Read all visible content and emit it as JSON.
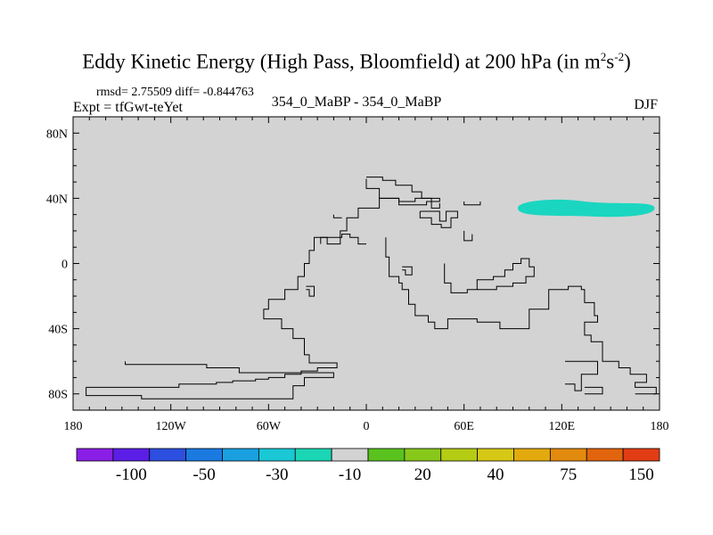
{
  "header": {
    "title_main": "Eddy Kinetic Energy (High Pass, Bloomfield) at 200 hPa (in m",
    "title_sup1": "2",
    "title_mid": "s",
    "title_sup2": "-2",
    "title_end": ")",
    "stats": "rmsd= 2.75509 diff= -0.844763",
    "expt": "Expt = tfGwt-teYet",
    "case": "354_0_MaBP - 354_0_MaBP",
    "season": "DJF"
  },
  "chart_data": {
    "type": "heatmap",
    "title": "Eddy Kinetic Energy (High Pass, Bloomfield) at 200 hPa (in m2s-2)",
    "x_range": [
      -180,
      180
    ],
    "y_range": [
      -90,
      90
    ],
    "x_ticks": [
      {
        "value": -180,
        "label": "180"
      },
      {
        "value": -120,
        "label": "120W"
      },
      {
        "value": -60,
        "label": "60W"
      },
      {
        "value": 0,
        "label": "0"
      },
      {
        "value": 60,
        "label": "60E"
      },
      {
        "value": 120,
        "label": "120E"
      },
      {
        "value": 180,
        "label": "180"
      }
    ],
    "y_ticks": [
      {
        "value": 80,
        "label": "80N"
      },
      {
        "value": 40,
        "label": "40N"
      },
      {
        "value": 0,
        "label": "0"
      },
      {
        "value": -40,
        "label": "40S"
      },
      {
        "value": -80,
        "label": "80S"
      }
    ],
    "background_value_color": "#d3d3d3",
    "anomaly_regions": [
      {
        "description": "-10 to -30 band",
        "color": "#1ad6c0",
        "lon_range": [
          93,
          177
        ],
        "lat_range": [
          29,
          39
        ]
      }
    ],
    "colorbar": {
      "colors": [
        "#8a1ee6",
        "#5b1ee6",
        "#2c4fe0",
        "#1a7ae0",
        "#1aa0e0",
        "#1ac8d6",
        "#1ad6b4",
        "#d3d3d3",
        "#5ac21e",
        "#88c81a",
        "#b4cc14",
        "#d6c814",
        "#e2aa0e",
        "#e28a0e",
        "#e2640e",
        "#e23c14"
      ],
      "labels": [
        {
          "boundary": 2,
          "label": "-100"
        },
        {
          "boundary": 4,
          "label": "-50"
        },
        {
          "boundary": 6,
          "label": "-30"
        },
        {
          "boundary": 8,
          "label": "-10"
        },
        {
          "boundary": 10,
          "label": "20"
        },
        {
          "boundary": 12,
          "label": "40"
        },
        {
          "boundary": 14,
          "label": "75"
        },
        {
          "boundary": 16,
          "label": "150"
        }
      ]
    },
    "coastline_lon_lat": [
      [
        [
          -172,
          -76
        ],
        [
          -115,
          -76
        ],
        [
          -115,
          -74
        ],
        [
          -92,
          -74
        ],
        [
          -92,
          -73
        ],
        [
          -82,
          -73
        ],
        [
          -82,
          -72
        ],
        [
          -68,
          -72
        ],
        [
          -68,
          -71
        ],
        [
          -60,
          -71
        ],
        [
          -60,
          -70
        ],
        [
          -50,
          -70
        ],
        [
          -50,
          -68
        ],
        [
          -40,
          -68
        ],
        [
          -40,
          -66
        ],
        [
          -30,
          -66
        ],
        [
          -30,
          -64
        ],
        [
          -18,
          -64
        ],
        [
          -18,
          -61
        ],
        [
          -35,
          -61
        ],
        [
          -35,
          -56
        ],
        [
          -38,
          -56
        ],
        [
          -38,
          -46
        ],
        [
          -45,
          -46
        ],
        [
          -45,
          -40
        ],
        [
          -52,
          -40
        ],
        [
          -52,
          -34
        ],
        [
          -63,
          -34
        ],
        [
          -63,
          -28
        ],
        [
          -60,
          -28
        ],
        [
          -60,
          -22
        ],
        [
          -50,
          -22
        ],
        [
          -50,
          -16
        ],
        [
          -42,
          -16
        ],
        [
          -42,
          -8
        ],
        [
          -38,
          -8
        ],
        [
          -38,
          0
        ],
        [
          -35,
          0
        ],
        [
          -35,
          8
        ],
        [
          -32,
          8
        ],
        [
          -32,
          16
        ],
        [
          -24,
          16
        ],
        [
          -24,
          12
        ],
        [
          -16,
          12
        ],
        [
          -16,
          20
        ],
        [
          -12,
          20
        ],
        [
          -12,
          28
        ],
        [
          -5,
          28
        ],
        [
          -5,
          34
        ],
        [
          8,
          34
        ],
        [
          8,
          40
        ],
        [
          20,
          40
        ],
        [
          20,
          38
        ],
        [
          30,
          38
        ],
        [
          30,
          40
        ],
        [
          40,
          40
        ],
        [
          40,
          34
        ],
        [
          45,
          34
        ],
        [
          45,
          37
        ]
      ],
      [
        [
          -172,
          -76
        ],
        [
          -172,
          -81
        ],
        [
          -138,
          -81
        ],
        [
          -138,
          -83
        ],
        [
          -45,
          -83
        ],
        [
          -45,
          -75
        ],
        [
          -38,
          -75
        ],
        [
          -38,
          -70
        ],
        [
          -20,
          -70
        ],
        [
          -20,
          -67
        ],
        [
          -78,
          -67
        ],
        [
          -78,
          -64
        ],
        [
          -98,
          -64
        ],
        [
          -98,
          -62
        ],
        [
          -148,
          -62
        ],
        [
          -148,
          -60
        ]
      ],
      [
        [
          0,
          12
        ],
        [
          -5,
          12
        ],
        [
          -5,
          16
        ],
        [
          -10,
          16
        ],
        [
          -10,
          18
        ],
        [
          -15,
          18
        ],
        [
          -15,
          16
        ],
        [
          -28,
          16
        ],
        [
          -28,
          12
        ]
      ],
      [
        [
          12,
          16
        ],
        [
          12,
          4
        ],
        [
          14,
          4
        ],
        [
          14,
          -8
        ],
        [
          20,
          -8
        ],
        [
          20,
          -12
        ],
        [
          22,
          -12
        ],
        [
          22,
          -16
        ],
        [
          26,
          -16
        ],
        [
          26,
          -25
        ],
        [
          30,
          -25
        ],
        [
          30,
          -32
        ],
        [
          38,
          -32
        ],
        [
          38,
          -36
        ],
        [
          42,
          -36
        ],
        [
          42,
          -40
        ],
        [
          50,
          -40
        ],
        [
          50,
          -34
        ],
        [
          68,
          -34
        ],
        [
          68,
          -36
        ],
        [
          82,
          -36
        ],
        [
          82,
          -40
        ],
        [
          100,
          -40
        ],
        [
          100,
          -28
        ],
        [
          112,
          -28
        ],
        [
          112,
          -16
        ],
        [
          124,
          -16
        ],
        [
          124,
          -14
        ],
        [
          132,
          -14
        ],
        [
          132,
          -16
        ],
        [
          134,
          -16
        ],
        [
          134,
          -24
        ],
        [
          140,
          -24
        ],
        [
          140,
          -32
        ],
        [
          142,
          -32
        ],
        [
          142,
          -36
        ],
        [
          134,
          -36
        ],
        [
          134,
          -44
        ],
        [
          138,
          -44
        ],
        [
          138,
          -48
        ],
        [
          145,
          -48
        ],
        [
          145,
          -60
        ],
        [
          155,
          -60
        ],
        [
          155,
          -64
        ],
        [
          162,
          -64
        ],
        [
          162,
          -68
        ],
        [
          172,
          -68
        ],
        [
          172,
          -73
        ],
        [
          165,
          -73
        ],
        [
          165,
          -76
        ],
        [
          178,
          -76
        ],
        [
          178,
          -80
        ]
      ],
      [
        [
          48,
          0
        ],
        [
          48,
          -12
        ],
        [
          52,
          -12
        ],
        [
          52,
          -18
        ],
        [
          62,
          -18
        ],
        [
          62,
          -16
        ],
        [
          68,
          -16
        ],
        [
          68,
          -10
        ],
        [
          78,
          -10
        ],
        [
          78,
          -8
        ],
        [
          85,
          -8
        ],
        [
          85,
          -4
        ],
        [
          90,
          -4
        ],
        [
          90,
          0
        ],
        [
          95,
          0
        ],
        [
          95,
          3
        ],
        [
          100,
          3
        ],
        [
          100,
          -2
        ],
        [
          103,
          -2
        ],
        [
          103,
          -8
        ],
        [
          98,
          -8
        ],
        [
          98,
          -12
        ],
        [
          90,
          -12
        ],
        [
          90,
          -14
        ],
        [
          80,
          -14
        ],
        [
          80,
          -16
        ],
        [
          62,
          -16
        ]
      ],
      [
        [
          33,
          32
        ],
        [
          33,
          28
        ],
        [
          40,
          28
        ],
        [
          40,
          24
        ],
        [
          46,
          24
        ],
        [
          46,
          22
        ],
        [
          52,
          22
        ],
        [
          52,
          28
        ],
        [
          56,
          28
        ],
        [
          56,
          32
        ],
        [
          49,
          32
        ],
        [
          49,
          26
        ],
        [
          45,
          26
        ],
        [
          45,
          32
        ],
        [
          33,
          32
        ]
      ],
      [
        [
          0,
          52
        ],
        [
          0,
          46
        ],
        [
          8,
          46
        ],
        [
          8,
          40
        ],
        [
          20,
          40
        ],
        [
          20,
          36
        ],
        [
          37,
          36
        ],
        [
          37,
          38
        ],
        [
          45,
          38
        ],
        [
          45,
          40
        ],
        [
          34,
          40
        ],
        [
          34,
          44
        ],
        [
          28,
          44
        ],
        [
          28,
          48
        ],
        [
          18,
          48
        ],
        [
          18,
          51
        ],
        [
          10,
          51
        ],
        [
          10,
          53
        ],
        [
          0,
          53
        ]
      ],
      [
        [
          -37,
          -14
        ],
        [
          -32,
          -14
        ],
        [
          -32,
          -20
        ],
        [
          -35,
          -20
        ],
        [
          -35,
          -16
        ],
        [
          -37,
          -16
        ]
      ],
      [
        [
          22,
          -2
        ],
        [
          28,
          -2
        ],
        [
          28,
          -7
        ],
        [
          24,
          -7
        ],
        [
          24,
          -4
        ],
        [
          22,
          -4
        ]
      ],
      [
        [
          122,
          -60
        ],
        [
          142,
          -60
        ],
        [
          142,
          -68
        ],
        [
          132,
          -68
        ],
        [
          132,
          -78
        ],
        [
          128,
          -78
        ],
        [
          128,
          -74
        ],
        [
          122,
          -74
        ]
      ],
      [
        [
          134,
          -76
        ],
        [
          145,
          -76
        ],
        [
          145,
          -80
        ],
        [
          134,
          -80
        ]
      ],
      [
        [
          165,
          -80
        ],
        [
          178,
          -80
        ]
      ],
      [
        [
          60,
          38
        ],
        [
          60,
          36
        ],
        [
          70,
          36
        ],
        [
          70,
          38
        ]
      ],
      [
        [
          60,
          20
        ],
        [
          60,
          14
        ],
        [
          65,
          14
        ],
        [
          65,
          18
        ]
      ],
      [
        [
          -20,
          30
        ],
        [
          -20,
          28
        ],
        [
          -15,
          28
        ]
      ]
    ]
  }
}
